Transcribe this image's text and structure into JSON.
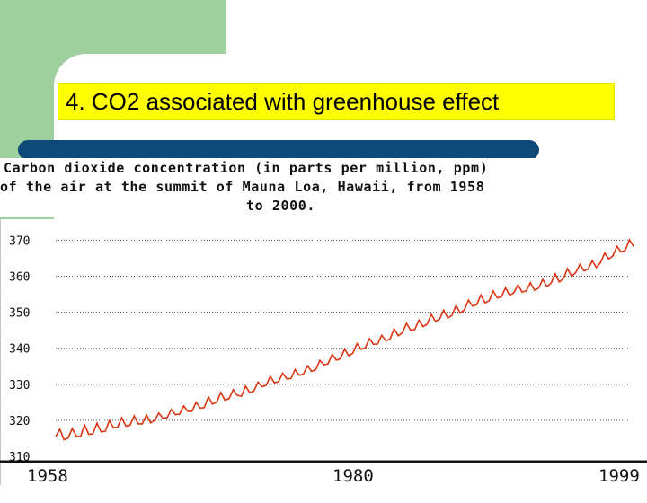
{
  "slide": {
    "title": "4.  CO2 associated with greenhouse effect"
  },
  "chart_heading": {
    "line1": "Carbon dioxide concentration (in parts per million, ppm)",
    "line2": "of the air at the summit of Mauna Loa, Hawaii, from 1958",
    "line3": "to 2000."
  },
  "colors": {
    "background_green": "#9fcf9f",
    "title_yellow": "#ffff00",
    "bar_blue": "#0d4a7a",
    "series_red": "#dd3311"
  },
  "chart_data": {
    "type": "line",
    "title": "Carbon dioxide concentration (in parts per million, ppm) of the air at the summit of Mauna Loa, Hawaii, from 1958 to 2000.",
    "xlabel": "",
    "ylabel": "",
    "x_tick_labels": [
      "1958",
      "1980",
      "1999"
    ],
    "y_ticks": [
      310,
      320,
      330,
      340,
      350,
      360,
      370
    ],
    "xlim": [
      1958,
      2000
    ],
    "ylim": [
      310,
      372
    ],
    "grid": "horizontal dotted",
    "legend": "none",
    "series": [
      {
        "values_description_omitted": true,
        "x": [
          1958.0,
          1958.3,
          1958.6,
          1958.9,
          1959.2,
          1959.5,
          1959.8,
          1960.1,
          1960.4,
          1960.7,
          1961.0,
          1961.3,
          1961.6,
          1961.9,
          1962.2,
          1962.5,
          1962.8,
          1963.1,
          1963.4,
          1963.7,
          1964.0,
          1964.3,
          1964.6,
          1964.9,
          1965.2,
          1965.5,
          1965.8,
          1966.1,
          1966.4,
          1966.7,
          1967.0,
          1967.3,
          1967.6,
          1967.9,
          1968.2,
          1968.5,
          1968.8,
          1969.1,
          1969.4,
          1969.7,
          1970.0,
          1970.3,
          1970.6,
          1970.9,
          1971.2,
          1971.5,
          1971.8,
          1972.1,
          1972.4,
          1972.7,
          1973.0,
          1973.3,
          1973.6,
          1973.9,
          1974.2,
          1974.5,
          1974.8,
          1975.1,
          1975.4,
          1975.7,
          1976.0,
          1976.3,
          1976.6,
          1976.9,
          1977.2,
          1977.5,
          1977.8,
          1978.1,
          1978.4,
          1978.7,
          1979.0,
          1979.3,
          1979.6,
          1979.9,
          1980.2,
          1980.5,
          1980.8,
          1981.1,
          1981.4,
          1981.7,
          1982.0,
          1982.3,
          1982.6,
          1982.9,
          1983.2,
          1983.5,
          1983.8,
          1984.1,
          1984.4,
          1984.7,
          1985.0,
          1985.3,
          1985.6,
          1985.9,
          1986.2,
          1986.5,
          1986.8,
          1987.1,
          1987.4,
          1987.7,
          1988.0,
          1988.3,
          1988.6,
          1988.9,
          1989.2,
          1989.5,
          1989.8,
          1990.1,
          1990.4,
          1990.7,
          1991.0,
          1991.3,
          1991.6,
          1991.9,
          1992.2,
          1992.5,
          1992.8,
          1993.1,
          1993.4,
          1993.7,
          1994.0,
          1994.3,
          1994.6,
          1994.9,
          1995.2,
          1995.5,
          1995.8,
          1996.1,
          1996.4,
          1996.7,
          1997.0,
          1997.3,
          1997.6,
          1997.9,
          1998.2,
          1998.5,
          1998.8,
          1999.1,
          1999.4,
          1999.7,
          2000.0
        ],
        "y": [
          315.5,
          317.5,
          314.6,
          315.1,
          317.7,
          315.6,
          315.4,
          318.7,
          316.1,
          316.2,
          319.2,
          316.8,
          316.9,
          319.9,
          317.9,
          318.1,
          320.7,
          318.4,
          318.6,
          321.2,
          319.0,
          319.0,
          321.5,
          319.3,
          320.0,
          322.0,
          320.6,
          320.7,
          323.0,
          321.6,
          321.7,
          324.0,
          322.5,
          322.5,
          325.0,
          323.4,
          323.5,
          326.5,
          324.5,
          325.0,
          327.7,
          325.6,
          326.0,
          328.5,
          326.9,
          326.7,
          329.5,
          327.7,
          328.1,
          330.6,
          329.3,
          329.7,
          332.2,
          330.4,
          330.7,
          333.1,
          331.5,
          331.6,
          334.1,
          332.5,
          332.8,
          335.1,
          333.6,
          334.1,
          336.6,
          335.4,
          335.7,
          338.3,
          336.7,
          337.1,
          339.8,
          337.9,
          338.6,
          341.3,
          339.7,
          340.1,
          342.7,
          341.1,
          341.2,
          343.6,
          342.1,
          342.5,
          345.4,
          343.5,
          344.3,
          346.9,
          345.0,
          345.2,
          347.8,
          346.0,
          346.7,
          349.4,
          347.5,
          348.0,
          350.6,
          348.4,
          349.1,
          351.9,
          349.8,
          350.6,
          353.4,
          351.7,
          352.1,
          354.8,
          352.6,
          353.2,
          355.9,
          354.0,
          354.3,
          356.8,
          354.7,
          355.4,
          357.6,
          355.6,
          355.9,
          358.2,
          356.1,
          356.7,
          359.1,
          357.1,
          358.0,
          360.7,
          358.4,
          359.3,
          362.1,
          360.0,
          361.0,
          363.3,
          361.5,
          362.0,
          364.3,
          362.4,
          363.8,
          366.4,
          364.8,
          365.6,
          368.3,
          366.7,
          367.2,
          370.1,
          368.3
        ]
      }
    ]
  }
}
